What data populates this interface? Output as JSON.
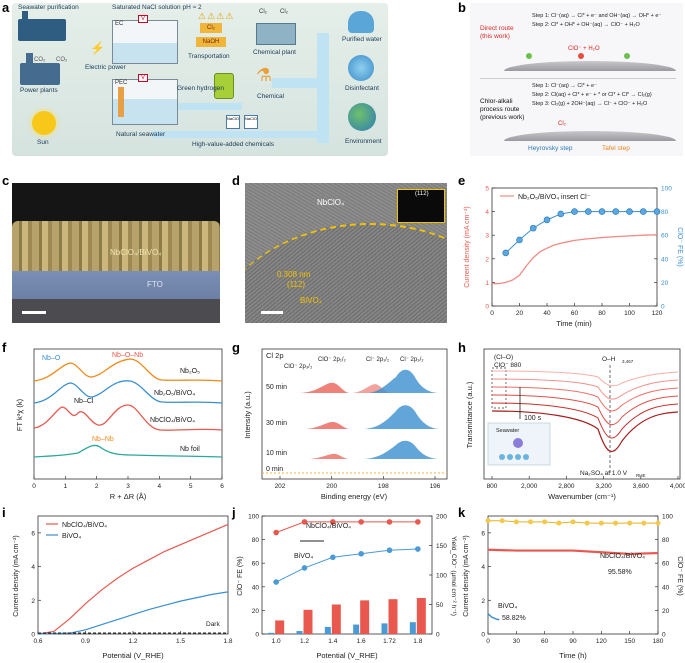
{
  "panel_labels": [
    "a",
    "b",
    "c",
    "d",
    "e",
    "f",
    "g",
    "h",
    "i",
    "j",
    "k"
  ],
  "panel_a": {
    "header": "Saturated NaCl solution pH ≈ 2",
    "seawater_purification": "Seawater purification",
    "power_plants": "Power plants",
    "co2": "CO₂",
    "electric_power": "Electric power",
    "sun": "Sun",
    "natural_seawater": "Natural seawater",
    "ec": "EC",
    "pec": "PEC",
    "v": "V",
    "cl2": "Cl₂",
    "naoh": "NaOH",
    "transportation": "Transportation",
    "green_hydrogen": "Green hydrogen",
    "chemical_plant": "Chemical plant",
    "chemical": "Chemical",
    "high_value": "High-value-added chemicals",
    "naclo": "NaClO",
    "purified_water": "Purified water",
    "disinfectant": "Disinfectant",
    "environment": "Environment"
  },
  "panel_b": {
    "direct_route": "Direct route",
    "this_work": "(this work)",
    "step1": "Step 1: Cl⁻(aq) → Cl* + e⁻ and OH⁻(aq) → OH* + e⁻",
    "step2": "Step 2: Cl* + OH* + OH⁻(aq) → ClO⁻ + H₂O",
    "mol_clo": "ClO⁻ + H₂O",
    "chlor_alkali": "Chlor-alkali",
    "process_route": "process route",
    "previous_work": "(previous work)",
    "ca_step1": "Step 1: Cl⁻(aq) → Cl* + e⁻",
    "ca_step2": "Step 2: Cl(aq) + Cl* + e⁻ + * or Cl* + Cl* → Cl₂(g)",
    "ca_step3": "Step 3: Cl₂(g) + 2OH⁻(aq) → Cl⁻ + ClO⁻ + H₂O",
    "heyrovsky": "Heyrovsky step",
    "tafel": "Tafel step",
    "cl2": "Cl₂"
  },
  "panel_c": {
    "layer_top": "NbClO₄/BiVO₄",
    "layer_bottom": "FTO"
  },
  "panel_d": {
    "label": "NbClO₄",
    "spacing": "0.308 nm",
    "plane": "(112)",
    "bivo4": "BiVO₄",
    "fft_plane": "(112)"
  },
  "panel_e": {
    "legend": "Nb₂O₅/BiVO₄ insert Cl⁻",
    "xlabel": "Time (min)",
    "ylabel_left": "Current density (mA cm⁻²)",
    "ylabel_right": "ClO⁻ FE (%)",
    "xticks": [
      "0",
      "20",
      "40",
      "60",
      "80",
      "100",
      "120"
    ],
    "yticks_left": [
      "0",
      "1",
      "2",
      "3",
      "4",
      "5"
    ],
    "yticks_right": [
      "0",
      "20",
      "40",
      "60",
      "80",
      "100"
    ]
  },
  "panel_f": {
    "ylabel": "FT k³χ (k)",
    "xlabel": "R + ΔR (Å)",
    "xticks": [
      "0",
      "1",
      "2",
      "3",
      "4",
      "5",
      "6"
    ],
    "curves": [
      "Nb₂O₅",
      "Nb₂O₅/BiVO₄",
      "NbClO₄/BiVO₄",
      "Nb foil"
    ],
    "ann_nbo": "Nb–O",
    "ann_nbonb": "Nb–O–Nb",
    "ann_nbcl": "Nb–Cl",
    "ann_nbnb": "Nb–Nb"
  },
  "panel_g": {
    "title": "Cl 2p",
    "ylabel": "Intensity (a.u.)",
    "xlabel": "Binding energy (eV)",
    "xticks": [
      "202",
      "200",
      "198",
      "196"
    ],
    "times": [
      "50 min",
      "30 min",
      "10 min",
      "0 min"
    ],
    "peaks": [
      "ClO⁻ 2p₃/₂",
      "ClO⁻ 2p₁/₂",
      "Cl⁻ 2p₁/₂",
      "Cl⁻ 2p₃/₂"
    ]
  },
  "panel_h": {
    "ylabel": "Transmittance (a.u.)",
    "xlabel": "Wavenumber (cm⁻¹)",
    "xticks": [
      "800",
      "2,000",
      "2,800",
      "3,200",
      "3,600",
      "4,000"
    ],
    "ann_clo": "(Cl–O)",
    "ann_clo2": "ClO⁻ 880",
    "ann_oh": "O–H",
    "ann_oh_sub": "3,467",
    "ann_time": "100 s",
    "ann_seawater": "Seawater",
    "condition": "Na₂SO₄ at 1.0 V",
    "condition_sub": "RHE"
  },
  "chart_data": [
    {
      "panel": "e",
      "type": "line",
      "x_units": "min",
      "xlim": [
        0,
        120
      ],
      "series": [
        {
          "name": "Nb₂O₅/BiVO₄ insert Cl⁻",
          "axis": "left",
          "x": [
            0,
            5,
            10,
            15,
            20,
            25,
            30,
            35,
            40,
            45,
            50,
            55,
            60,
            70,
            80,
            90,
            100,
            110,
            120
          ],
          "y": [
            0.95,
            0.95,
            1.0,
            1.1,
            1.3,
            1.7,
            2.05,
            2.3,
            2.45,
            2.58,
            2.66,
            2.72,
            2.78,
            2.85,
            2.9,
            2.94,
            2.97,
            3.0,
            3.02
          ]
        },
        {
          "name": "ClO⁻ FE",
          "axis": "right",
          "x": [
            10,
            20,
            30,
            40,
            50,
            60,
            70,
            80,
            90,
            100,
            110,
            120
          ],
          "y": [
            45,
            56,
            66,
            73,
            78,
            80,
            80,
            80,
            80,
            80,
            80,
            80
          ]
        }
      ],
      "ylim_left": [
        0,
        5
      ],
      "ylim_right": [
        0,
        100
      ]
    },
    {
      "panel": "i",
      "type": "line",
      "xlabel": "Potential (V_RHE)",
      "ylabel": "Current density (mA cm⁻²)",
      "xticks": [
        "0.6",
        "0.9",
        "1.2",
        "1.5",
        "1.8"
      ],
      "yticks": [
        "0",
        "2",
        "4",
        "6"
      ],
      "xlim": [
        0.6,
        1.8
      ],
      "ylim": [
        0,
        7
      ],
      "legend": [
        "NbClO₄/BiVO₄",
        "BiVO₄"
      ],
      "dark_label": "Dark",
      "series": [
        {
          "name": "NbClO₄/BiVO₄",
          "color": "#e8584f",
          "x": [
            0.6,
            0.7,
            0.8,
            0.9,
            1.0,
            1.1,
            1.2,
            1.3,
            1.4,
            1.5,
            1.6,
            1.7,
            1.8
          ],
          "y": [
            0.0,
            0.15,
            0.9,
            1.8,
            2.6,
            3.3,
            3.9,
            4.4,
            4.9,
            5.3,
            5.7,
            6.1,
            6.5
          ]
        },
        {
          "name": "BiVO₄",
          "color": "#3a8fd0",
          "x": [
            0.6,
            0.8,
            0.9,
            1.0,
            1.1,
            1.2,
            1.3,
            1.4,
            1.5,
            1.6,
            1.7,
            1.8
          ],
          "y": [
            0.0,
            0.05,
            0.25,
            0.55,
            0.85,
            1.15,
            1.45,
            1.7,
            1.95,
            2.15,
            2.35,
            2.5
          ]
        },
        {
          "name": "Dark",
          "color": "#222",
          "x": [
            0.6,
            1.8
          ],
          "y": [
            0.05,
            0.05
          ]
        }
      ]
    },
    {
      "panel": "j",
      "type": "bar",
      "xlabel": "Potential (V_RHE)",
      "ylabel_left": "ClO⁻ FE (%)",
      "ylabel_right": "Yield_ClO⁻ (μmol cm⁻² h⁻¹)",
      "categories": [
        "1.0",
        "1.2",
        "1.4",
        "1.6",
        "1.72",
        "1.8"
      ],
      "yticks_left": [
        "0",
        "20",
        "40",
        "60",
        "80",
        "100"
      ],
      "yticks_right": [
        "0",
        "50",
        "100",
        "150",
        "200"
      ],
      "legend": [
        "NbClO₄/BiVO₄",
        "BiVO₄"
      ],
      "series": [
        {
          "name": "NbClO₄/BiVO₄",
          "kind": "fe_line",
          "values": [
            86,
            95,
            95,
            95,
            95,
            95
          ]
        },
        {
          "name": "BiVO₄",
          "kind": "fe_line",
          "values": [
            44,
            56,
            65,
            68,
            71,
            72
          ]
        },
        {
          "name": "NbClO₄/BiVO₄",
          "kind": "yield_bar",
          "values": [
            23,
            41,
            50,
            57,
            59,
            61
          ]
        },
        {
          "name": "BiVO₄",
          "kind": "yield_bar",
          "values": [
            2,
            5,
            12,
            16,
            18,
            20
          ]
        }
      ]
    },
    {
      "panel": "k",
      "type": "line",
      "xlabel": "Time (h)",
      "ylabel_left": "Current density (mA cm⁻²)",
      "ylabel_right": "ClO⁻ FE (%)",
      "xticks": [
        "0",
        "30",
        "60",
        "90",
        "120",
        "150",
        "180"
      ],
      "yticks_left": [
        "0",
        "2",
        "4",
        "6"
      ],
      "yticks_right": [
        "0",
        "20",
        "40",
        "60",
        "80",
        "100"
      ],
      "labels": [
        "NbClO₄/BiVO₄",
        "BiVO₄"
      ],
      "retention": [
        "95.58%",
        "58.82%"
      ],
      "series": [
        {
          "name": "NbClO₄/BiVO₄",
          "x": [
            0,
            30,
            60,
            90,
            120,
            150,
            180
          ],
          "y": [
            5.0,
            4.95,
            4.95,
            4.95,
            4.85,
            4.75,
            4.8
          ]
        },
        {
          "name": "BiVO₄",
          "x": [
            0,
            2,
            4,
            6,
            8,
            10,
            12
          ],
          "y": [
            1.2,
            1.1,
            1.0,
            0.95,
            0.9,
            0.87,
            0.85
          ]
        },
        {
          "name": "ClO⁻ FE",
          "x": [
            0,
            15,
            30,
            45,
            60,
            75,
            90,
            105,
            120,
            135,
            150,
            165,
            180
          ],
          "y": [
            96,
            96,
            95,
            95,
            95,
            94,
            95,
            94,
            94,
            94,
            94,
            94,
            94
          ]
        }
      ]
    }
  ]
}
